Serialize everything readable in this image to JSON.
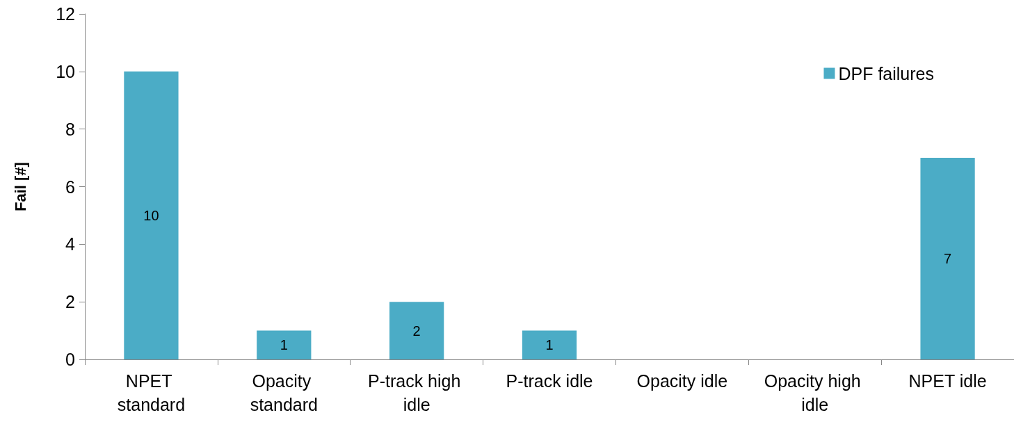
{
  "chart_data": {
    "type": "bar",
    "ylabel": "Fail [#]",
    "categories": [
      "NPET standard",
      "Opacity standard",
      "P-track high idle",
      "P-track idle",
      "Opacity idle",
      "Opacity high idle",
      "NPET idle"
    ],
    "series": [
      {
        "name": "DPF failures",
        "color": "#4bacc6",
        "values": [
          10,
          1,
          2,
          1,
          0,
          0,
          7
        ],
        "value_labels": [
          "10",
          "1",
          "2",
          "1",
          null,
          null,
          "7"
        ]
      }
    ],
    "ylim": [
      0,
      12
    ],
    "yticks": [
      0,
      2,
      4,
      6,
      8,
      10,
      12
    ],
    "grid": false,
    "legend": "top right"
  }
}
